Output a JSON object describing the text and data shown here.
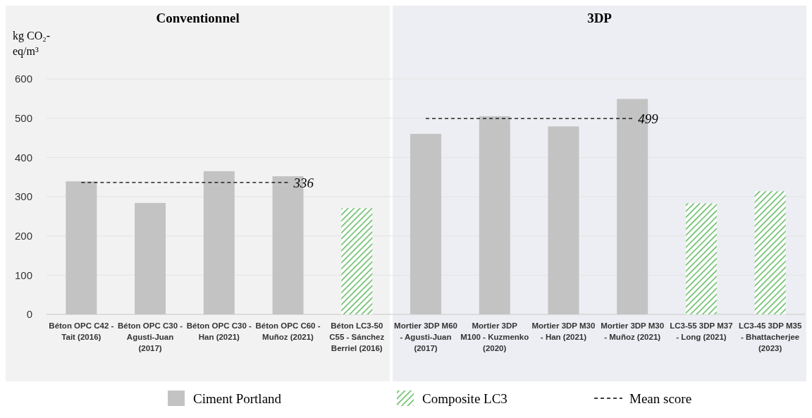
{
  "chart_data": {
    "type": "bar",
    "ylabel": "kg CO₂-eq/m³",
    "categories": [
      "Béton OPC C42 - Tait (2016)",
      "Béton OPC C30 - Agusti-Juan (2017)",
      "Béton OPC C30 - Han (2021)",
      "Béton OPC C60 - Muñoz (2021)",
      "Béton LC3-50 C55 - Sánchez Berriel (2016)",
      "Mortier 3DP M60 - Agusti-Juan (2017)",
      "Mortier 3DP M100 - Kuzmenko (2020)",
      "Mortier 3DP M30 - Han (2021)",
      "Mortier 3DP M30 - Muñoz (2021)",
      "LC3-55 3DP M37 - Long (2021)",
      "LC3-45 3DP M35 - Bhattacherjee (2023)"
    ],
    "series": [
      {
        "name": "Ciment Portland",
        "color": "#c3c3c3",
        "values": [
          339,
          284,
          365,
          352,
          null,
          460,
          505,
          479,
          549,
          null,
          null
        ]
      },
      {
        "name": "Composite LC3",
        "color": "#5cb85c",
        "values": [
          null,
          null,
          null,
          null,
          271,
          null,
          null,
          null,
          null,
          283,
          314
        ]
      },
      {
        "name": "Mean score",
        "type": "line",
        "color": "#000000",
        "line_style": "dashed",
        "values": [
          336,
          336,
          336,
          336,
          null,
          499,
          499,
          499,
          499,
          null,
          null
        ]
      }
    ],
    "annotations": [
      {
        "text": "336",
        "x": "Béton OPC C60 - Muñoz (2021)",
        "y": 336
      },
      {
        "text": "499",
        "x": "Mortier 3DP M30 - Muñoz (2021)",
        "y": 499
      }
    ],
    "bands": [
      {
        "axis": "x",
        "from": "Béton OPC C42 - Tait (2016)",
        "to": "Béton LC3-50 C55 - Sánchez Berriel (2016)",
        "label": "Conventionnel",
        "color": "#f2f2f2"
      },
      {
        "axis": "x",
        "from": "Mortier 3DP M60 - Agusti-Juan (2017)",
        "to": "LC3-45 3DP M35 - Bhattacherjee (2023)",
        "label": "3DP",
        "color": "#eceef3"
      }
    ],
    "ylim": [
      0,
      600
    ],
    "yticks": [
      0,
      100,
      200,
      300,
      400,
      500,
      600
    ],
    "grid": "y",
    "legend": "bottom"
  }
}
